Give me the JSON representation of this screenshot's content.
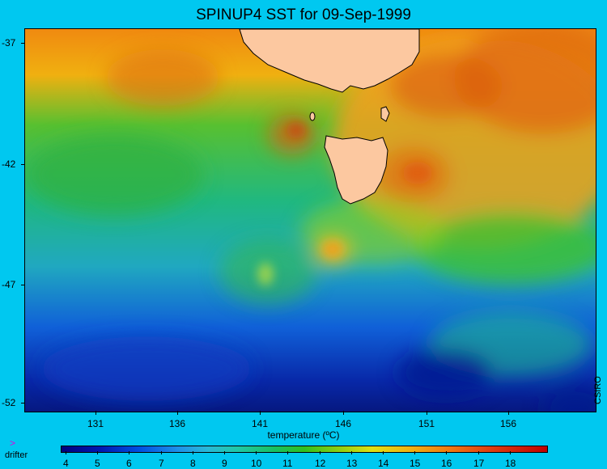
{
  "title": "SPINUP4 SST for 09-Sep-1999",
  "credit": "CSIRO",
  "y_axis": {
    "ticks": [
      "-37",
      "-42",
      "-47",
      "-52"
    ]
  },
  "x_axis": {
    "ticks": [
      "131",
      "136",
      "141",
      "146",
      "151",
      "156"
    ]
  },
  "colorbar": {
    "title": "temperature (ºC)",
    "ticks": [
      "4",
      "5",
      "6",
      "7",
      "8",
      "9",
      "10",
      "11",
      "12",
      "13",
      "14",
      "15",
      "16",
      "17",
      "18"
    ]
  },
  "legend": {
    "symbol": ">",
    "label": "drifter"
  },
  "colors": {
    "background": "#00c8f0",
    "land": "#fcc8a0"
  }
}
